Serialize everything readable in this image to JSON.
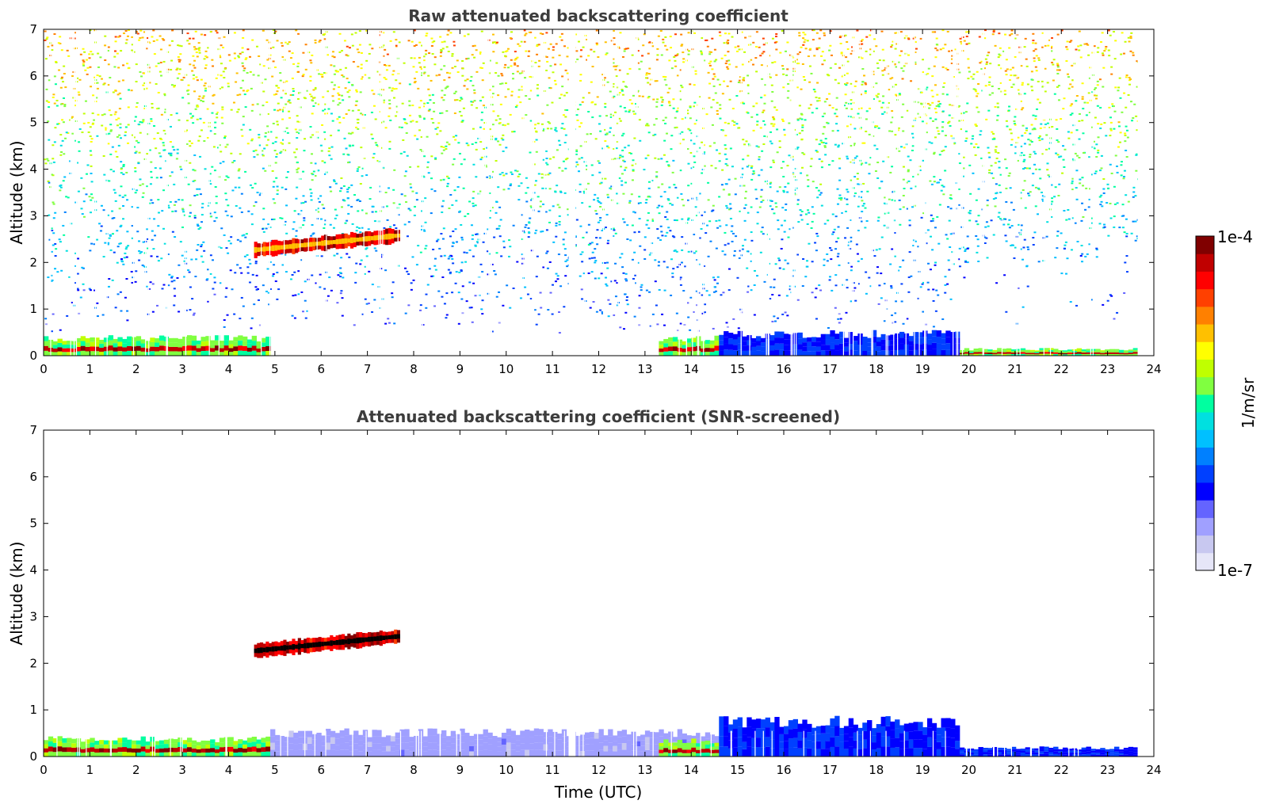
{
  "chart_data": [
    {
      "type": "heatmap",
      "title": "Raw attenuated backscattering coefficient",
      "xlabel": "",
      "ylabel": "Altitude (km)",
      "xlim": [
        0,
        24
      ],
      "ylim": [
        0,
        7
      ],
      "xticks": [
        "0",
        "1",
        "2",
        "3",
        "4",
        "5",
        "6",
        "7",
        "8",
        "9",
        "10",
        "11",
        "12",
        "13",
        "14",
        "15",
        "16",
        "17",
        "18",
        "19",
        "20",
        "21",
        "22",
        "23",
        "24"
      ],
      "yticks": [
        "0",
        "1",
        "2",
        "3",
        "4",
        "5",
        "6",
        "7"
      ],
      "data_end_x": 23.65,
      "features": [
        {
          "kind": "elevated-cloud-layer",
          "x_start": 4.55,
          "x_end": 7.7,
          "y_bottom": 2.2,
          "y_top": 2.65,
          "level": "high"
        },
        {
          "kind": "boundary-layer",
          "x_start": 0,
          "x_end": 4.9,
          "y_top": 0.4,
          "level": "high"
        },
        {
          "kind": "boundary-layer",
          "x_start": 13.3,
          "x_end": 14.6,
          "y_top": 0.4,
          "level": "high"
        },
        {
          "kind": "boundary-layer",
          "x_start": 14.6,
          "x_end": 19.8,
          "y_top": 0.5,
          "level": "medium"
        },
        {
          "kind": "boundary-layer",
          "x_start": 19.8,
          "x_end": 23.65,
          "y_top": 0.15,
          "level": "high"
        },
        {
          "kind": "data-gap",
          "x": 11.35,
          "width": 0.15
        }
      ]
    },
    {
      "type": "heatmap",
      "title": "Attenuated backscattering coefficient (SNR-screened)",
      "xlabel": "Time (UTC)",
      "ylabel": "Altitude (km)",
      "xlim": [
        0,
        24
      ],
      "ylim": [
        0,
        7
      ],
      "xticks": [
        "0",
        "1",
        "2",
        "3",
        "4",
        "5",
        "6",
        "7",
        "8",
        "9",
        "10",
        "11",
        "12",
        "13",
        "14",
        "15",
        "16",
        "17",
        "18",
        "19",
        "20",
        "21",
        "22",
        "23",
        "24"
      ],
      "yticks": [
        "0",
        "1",
        "2",
        "3",
        "4",
        "5",
        "6",
        "7"
      ],
      "data_end_x": 23.65,
      "features": [
        {
          "kind": "elevated-cloud-layer",
          "x_start": 4.55,
          "x_end": 7.7,
          "y_bottom": 2.2,
          "y_top": 2.65,
          "level": "high"
        },
        {
          "kind": "boundary-layer",
          "x_start": 0,
          "x_end": 4.9,
          "y_top": 0.4,
          "level": "high"
        },
        {
          "kind": "boundary-layer",
          "x_start": 4.9,
          "x_end": 14.6,
          "y_top": 0.55,
          "level": "low"
        },
        {
          "kind": "boundary-layer",
          "x_start": 13.3,
          "x_end": 14.6,
          "y_top": 0.35,
          "level": "high"
        },
        {
          "kind": "boundary-layer",
          "x_start": 14.6,
          "x_end": 19.8,
          "y_top": 0.8,
          "level": "medium"
        },
        {
          "kind": "boundary-layer",
          "x_start": 19.8,
          "x_end": 23.65,
          "y_top": 0.2,
          "level": "medium"
        },
        {
          "kind": "data-gap",
          "x": 11.35,
          "width": 0.15
        }
      ]
    }
  ],
  "colorbar": {
    "label": "1/m/sr",
    "min_label": "1e-7",
    "max_label": "1e-4",
    "colors": [
      "#e6e6f8",
      "#c8c8f0",
      "#a0a0ff",
      "#6464ff",
      "#0000ff",
      "#0040ff",
      "#0080ff",
      "#00c0ff",
      "#00e0e0",
      "#00ffa0",
      "#80ff40",
      "#c0ff00",
      "#ffff00",
      "#ffc000",
      "#ff8000",
      "#ff4000",
      "#ff0000",
      "#c00000",
      "#800000"
    ]
  }
}
